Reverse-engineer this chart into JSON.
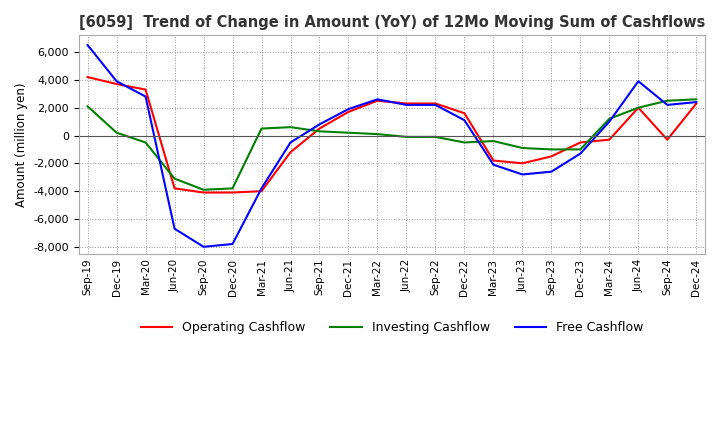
{
  "title": "[6059]  Trend of Change in Amount (YoY) of 12Mo Moving Sum of Cashflows",
  "ylabel": "Amount (million yen)",
  "x_labels": [
    "Sep-19",
    "Dec-19",
    "Mar-20",
    "Jun-20",
    "Sep-20",
    "Dec-20",
    "Mar-21",
    "Jun-21",
    "Sep-21",
    "Dec-21",
    "Mar-22",
    "Jun-22",
    "Sep-22",
    "Dec-22",
    "Mar-23",
    "Jun-23",
    "Sep-23",
    "Dec-23",
    "Mar-24",
    "Jun-24",
    "Sep-24",
    "Dec-24"
  ],
  "operating": [
    4200,
    3700,
    3300,
    -3800,
    -4100,
    -4100,
    -4000,
    -1200,
    500,
    1700,
    2500,
    2300,
    2300,
    1600,
    -1800,
    -2000,
    -1500,
    -500,
    -300,
    2000,
    -300,
    2300
  ],
  "investing": [
    2100,
    200,
    -500,
    -3100,
    -3900,
    -3800,
    500,
    600,
    300,
    200,
    100,
    -100,
    -100,
    -500,
    -400,
    -900,
    -1000,
    -1000,
    1200,
    2000,
    2500,
    2600
  ],
  "free": [
    6500,
    3900,
    2800,
    -6700,
    -8000,
    -7800,
    -3800,
    -500,
    800,
    1900,
    2600,
    2200,
    2200,
    1100,
    -2100,
    -2800,
    -2600,
    -1300,
    1000,
    3900,
    2200,
    2400
  ],
  "ylim": [
    -8500,
    7200
  ],
  "yticks": [
    -8000,
    -6000,
    -4000,
    -2000,
    0,
    2000,
    4000,
    6000
  ],
  "colors": {
    "operating": "#ff0000",
    "investing": "#008000",
    "free": "#0000ff"
  },
  "legend_labels": [
    "Operating Cashflow",
    "Investing Cashflow",
    "Free Cashflow"
  ]
}
